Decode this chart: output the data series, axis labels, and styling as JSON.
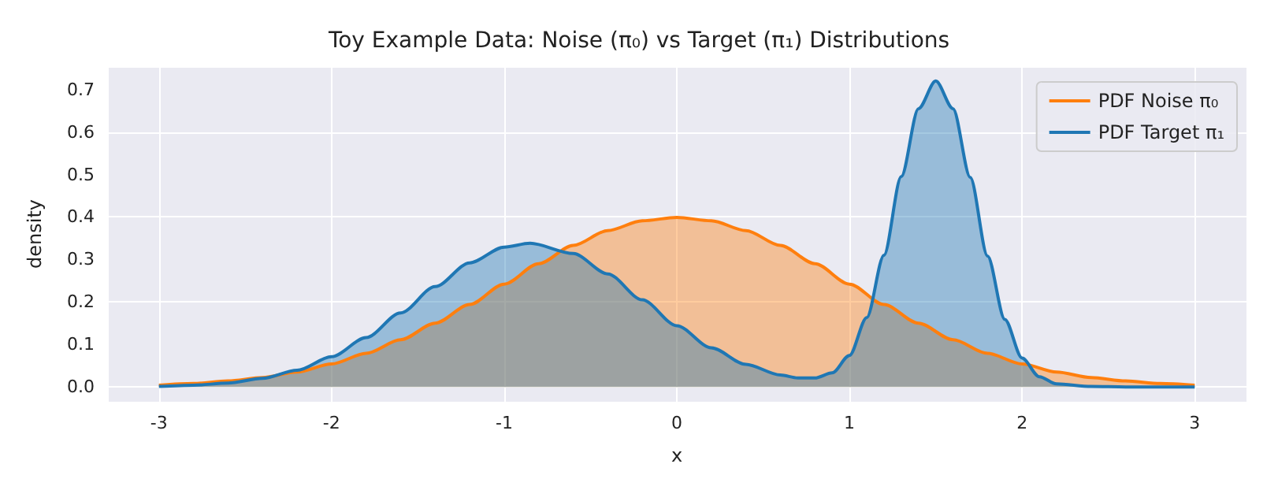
{
  "chart_data": {
    "type": "area",
    "title": "Toy Example Data: Noise (π₀) vs Target (π₁) Distributions",
    "xlabel": "x",
    "ylabel": "density",
    "xlim": [
      -3.3,
      3.3
    ],
    "ylim": [
      -0.035,
      0.755
    ],
    "xticks": [
      -3,
      -2,
      -1,
      0,
      1,
      2,
      3
    ],
    "yticks": [
      {
        "value": 0,
        "label": "0.0"
      },
      0.1,
      0.2,
      0.3,
      0.4,
      0.5,
      0.6,
      0.7
    ],
    "grid": true,
    "legend": "top right",
    "marker": "none",
    "line_style": "solid",
    "series": [
      {
        "name": "PDF Noise π₀",
        "color": "#ff7f0e",
        "x": [
          -3,
          -2.8,
          -2.6,
          -2.4,
          -2.2,
          -2,
          -1.8,
          -1.6,
          -1.4,
          -1.2,
          -1,
          -0.8,
          -0.6,
          -0.4,
          -0.2,
          0,
          0.2,
          0.4,
          0.6,
          0.8,
          1,
          1.2,
          1.4,
          1.6,
          1.8,
          2,
          2.2,
          2.4,
          2.6,
          2.8,
          3
        ],
        "values": [
          0.004,
          0.008,
          0.014,
          0.022,
          0.035,
          0.054,
          0.079,
          0.111,
          0.15,
          0.194,
          0.242,
          0.29,
          0.333,
          0.368,
          0.391,
          0.399,
          0.391,
          0.368,
          0.333,
          0.29,
          0.242,
          0.194,
          0.15,
          0.111,
          0.079,
          0.054,
          0.035,
          0.022,
          0.014,
          0.008,
          0.004
        ]
      },
      {
        "name": "PDF Target π₁",
        "color": "#1f77b4",
        "x": [
          -3,
          -2.8,
          -2.6,
          -2.4,
          -2.2,
          -2,
          -1.8,
          -1.6,
          -1.4,
          -1.2,
          -1,
          -0.85,
          -0.6,
          -0.4,
          -0.2,
          0,
          0.2,
          0.4,
          0.6,
          0.7,
          0.8,
          0.9,
          1,
          1.1,
          1.2,
          1.3,
          1.4,
          1.5,
          1.6,
          1.7,
          1.8,
          1.9,
          2,
          2.1,
          2.2,
          2.4,
          2.6,
          2.8,
          3
        ],
        "values": [
          0.001,
          0.004,
          0.009,
          0.02,
          0.039,
          0.071,
          0.116,
          0.174,
          0.236,
          0.292,
          0.329,
          0.338,
          0.314,
          0.266,
          0.205,
          0.144,
          0.092,
          0.053,
          0.028,
          0.021,
          0.021,
          0.033,
          0.074,
          0.163,
          0.31,
          0.495,
          0.655,
          0.72,
          0.655,
          0.493,
          0.308,
          0.159,
          0.068,
          0.024,
          0.007,
          0.001,
          0.0,
          0.0,
          0.0
        ]
      }
    ]
  }
}
